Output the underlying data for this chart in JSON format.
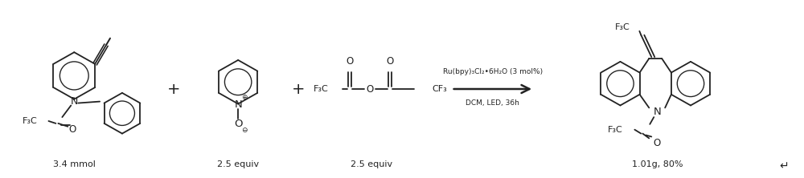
{
  "background_color": "#ffffff",
  "figure_width": 10.0,
  "figure_height": 2.22,
  "dpi": 100,
  "label_3_4_mmol": "3.4 mmol",
  "label_2_5_equiv_1": "2.5 equiv",
  "label_2_5_equiv_2": "2.5 equiv",
  "label_yield": "1.01g, 80%",
  "catalyst_line1": "Ru(bpy)₃Cl₂•6H₂O (3 mol%)",
  "catalyst_line2": "DCM, LED, 36h",
  "text_color": "#1a1a1a",
  "bond_color": "#222222",
  "arrow_annotation": "↵"
}
